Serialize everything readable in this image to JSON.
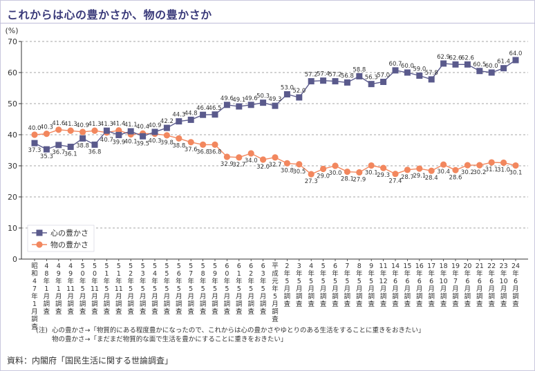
{
  "title": "これからは心の豊かさか、物の豊かさか",
  "note": {
    "prefix": "(注)",
    "line1": "心の豊かさ→「物質的にある程度豊かになったので、これからは心の豊かさやゆとりのある生活をすることに重きをおきたい」",
    "line2": "物の豊かさ→「まだまだ物質的な面で生活を豊かにすることに重きをおきたい」"
  },
  "source": "資料：内閣府「国民生活に関する世論調査」",
  "colors": {
    "heart": "#5a5a8c",
    "material": "#f2875e",
    "axis": "#333333",
    "grid": "#888888"
  },
  "chart_data": {
    "type": "line",
    "ylabel": "(%)",
    "ylim": [
      0,
      70
    ],
    "yticks": [
      0,
      10,
      20,
      30,
      40,
      50,
      60,
      70
    ],
    "grid": "dashed horizontal",
    "legend": "bottom-left",
    "categories": [
      "昭和47年1月調査",
      "48年1月調査",
      "49年1月調査",
      "49年11月調査",
      "50年5月調査",
      "50年11月調査",
      "51年5月調査",
      "51年11月調査",
      "52年5月調査",
      "53年5月調査",
      "54年5月調査",
      "55年5月調査",
      "56年5月調査",
      "57年5月調査",
      "58年5月調査",
      "59年5月調査",
      "60年5月調査",
      "61年5月調査",
      "62年5月調査",
      "63年5月調査",
      "平成元年5月調査",
      "2年5月調査",
      "3年5月調査",
      "4年5月調査",
      "5年5月調査",
      "6年5月調査",
      "7年5月調査",
      "8年5月調査",
      "9年5月調査",
      "11年12月調査",
      "14年6月調査",
      "15年6月調査",
      "16年6月調査",
      "17年6月調査",
      "18年10月調査",
      "19年7月調査",
      "20年6月調査",
      "21年6月調査",
      "22年6月調査",
      "23年10月調査",
      "24年6月調査"
    ],
    "x_label_columns": [
      [
        "昭",
        "和",
        "4",
        "7",
        "年",
        "1",
        "月",
        "調",
        "査"
      ],
      [
        "4",
        "8",
        "年",
        "1",
        "月",
        "調",
        "査"
      ],
      [
        "4",
        "9",
        "年",
        "1",
        "月",
        "調",
        "査"
      ],
      [
        "4",
        "9",
        "年",
        "11",
        "月",
        "調",
        "査"
      ],
      [
        "5",
        "0",
        "年",
        "5",
        "月",
        "調",
        "査"
      ],
      [
        "5",
        "0",
        "年",
        "11",
        "月",
        "調",
        "査"
      ],
      [
        "5",
        "1",
        "年",
        "5",
        "月",
        "調",
        "査"
      ],
      [
        "5",
        "1",
        "年",
        "11",
        "月",
        "調",
        "査"
      ],
      [
        "5",
        "2",
        "年",
        "5",
        "月",
        "調",
        "査"
      ],
      [
        "5",
        "3",
        "年",
        "5",
        "月",
        "調",
        "査"
      ],
      [
        "5",
        "4",
        "年",
        "5",
        "月",
        "調",
        "査"
      ],
      [
        "5",
        "5",
        "年",
        "5",
        "月",
        "調",
        "査"
      ],
      [
        "5",
        "6",
        "年",
        "5",
        "月",
        "調",
        "査"
      ],
      [
        "5",
        "7",
        "年",
        "5",
        "月",
        "調",
        "査"
      ],
      [
        "5",
        "8",
        "年",
        "5",
        "月",
        "調",
        "査"
      ],
      [
        "5",
        "9",
        "年",
        "5",
        "月",
        "調",
        "査"
      ],
      [
        "6",
        "0",
        "年",
        "5",
        "月",
        "調",
        "査"
      ],
      [
        "6",
        "1",
        "年",
        "5",
        "月",
        "調",
        "査"
      ],
      [
        "6",
        "2",
        "年",
        "5",
        "月",
        "調",
        "査"
      ],
      [
        "6",
        "3",
        "年",
        "5",
        "月",
        "調",
        "査"
      ],
      [
        "平",
        "成",
        "元",
        "年",
        "5",
        "月",
        "調",
        "査"
      ],
      [
        "2",
        "年",
        "5",
        "月",
        "調",
        "査"
      ],
      [
        "3",
        "年",
        "5",
        "月",
        "調",
        "査"
      ],
      [
        "4",
        "年",
        "5",
        "月",
        "調",
        "査"
      ],
      [
        "5",
        "年",
        "5",
        "月",
        "調",
        "査"
      ],
      [
        "6",
        "年",
        "5",
        "月",
        "調",
        "査"
      ],
      [
        "7",
        "年",
        "5",
        "月",
        "調",
        "査"
      ],
      [
        "8",
        "年",
        "5",
        "月",
        "調",
        "査"
      ],
      [
        "9",
        "年",
        "5",
        "月",
        "調",
        "査"
      ],
      [
        "11",
        "年",
        "12",
        "月",
        "調",
        "査"
      ],
      [
        "14",
        "年",
        "6",
        "月",
        "調",
        "査"
      ],
      [
        "15",
        "年",
        "6",
        "月",
        "調",
        "査"
      ],
      [
        "16",
        "年",
        "6",
        "月",
        "調",
        "査"
      ],
      [
        "17",
        "年",
        "6",
        "月",
        "調",
        "査"
      ],
      [
        "18",
        "年",
        "10",
        "月",
        "調",
        "査"
      ],
      [
        "19",
        "年",
        "7",
        "月",
        "調",
        "査"
      ],
      [
        "20",
        "年",
        "6",
        "月",
        "調",
        "査"
      ],
      [
        "21",
        "年",
        "6",
        "月",
        "調",
        "査"
      ],
      [
        "22",
        "年",
        "6",
        "月",
        "調",
        "査"
      ],
      [
        "23",
        "年",
        "10",
        "月",
        "調",
        "査"
      ],
      [
        "24",
        "年",
        "6",
        "月",
        "調",
        "査"
      ]
    ],
    "series": [
      {
        "name": "心の豊かさ",
        "marker": "square",
        "values": [
          37.3,
          35.3,
          36.7,
          36.1,
          38.8,
          36.8,
          41.3,
          39.9,
          41.1,
          39.5,
          40.9,
          42.2,
          44.3,
          44.8,
          46.4,
          46.5,
          49.6,
          49.1,
          49.6,
          50.3,
          49.3,
          53.0,
          52.0,
          57.2,
          57.4,
          57.2,
          56.8,
          58.8,
          56.3,
          57.0,
          60.7,
          60.0,
          59.0,
          57.8,
          62.9,
          62.6,
          62.6,
          60.5,
          60.0,
          61.4,
          64.0
        ]
      },
      {
        "name": "物の豊かさ",
        "marker": "circle",
        "values": [
          40.0,
          40.3,
          41.6,
          41.3,
          40.9,
          41.3,
          40.7,
          41.4,
          40.1,
          40.4,
          40.3,
          39.8,
          38.8,
          37.6,
          36.8,
          36.8,
          32.9,
          32.7,
          34.0,
          32.0,
          32.7,
          30.8,
          30.5,
          27.3,
          29.0,
          30.0,
          28.1,
          27.9,
          30.1,
          29.3,
          27.4,
          28.7,
          29.1,
          28.4,
          30.4,
          28.6,
          30.2,
          30.2,
          31.1,
          31.0,
          30.1
        ]
      }
    ]
  }
}
